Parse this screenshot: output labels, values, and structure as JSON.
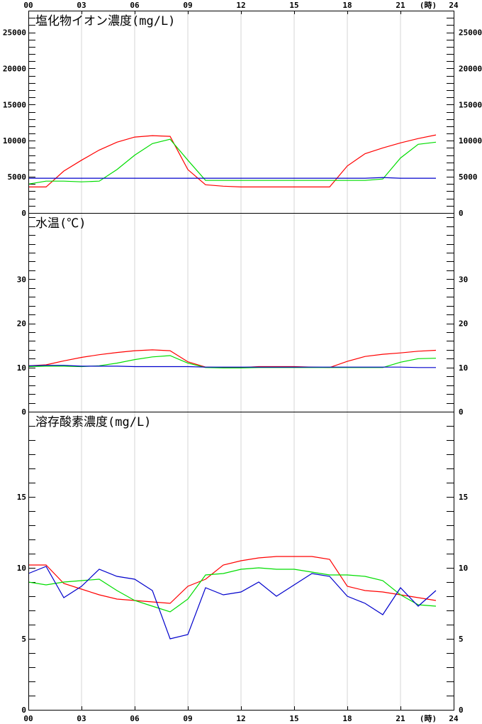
{
  "chart_data": [
    {
      "type": "line",
      "title": "塩化物イオン濃度(mg/L)",
      "x": [
        0,
        1,
        2,
        3,
        4,
        5,
        6,
        7,
        8,
        9,
        10,
        11,
        12,
        13,
        14,
        15,
        16,
        17,
        18,
        19,
        20,
        21,
        22,
        23
      ],
      "xlim": [
        0,
        24
      ],
      "ylim": [
        0,
        28000
      ],
      "yticks": [
        0,
        5000,
        10000,
        15000,
        20000,
        25000
      ],
      "grid": "vertical",
      "series": [
        {
          "color": "#ff0000",
          "values": [
            3600,
            3600,
            5800,
            7300,
            8700,
            9800,
            10500,
            10700,
            10600,
            6000,
            3900,
            3700,
            3600,
            3600,
            3600,
            3600,
            3600,
            3600,
            6500,
            8200,
            9000,
            9700,
            10300,
            10800
          ]
        },
        {
          "color": "#00dd00",
          "values": [
            4000,
            4400,
            4400,
            4300,
            4400,
            6000,
            8000,
            9600,
            10200,
            7300,
            4500,
            4500,
            4500,
            4500,
            4500,
            4500,
            4500,
            4500,
            4500,
            4500,
            4700,
            7600,
            9500,
            9800
          ]
        },
        {
          "color": "#0000cc",
          "values": [
            4800,
            4800,
            4800,
            4800,
            4800,
            4800,
            4800,
            4800,
            4800,
            4800,
            4800,
            4800,
            4800,
            4800,
            4800,
            4800,
            4800,
            4800,
            4800,
            4800,
            4900,
            4800,
            4800,
            4800
          ]
        }
      ]
    },
    {
      "type": "line",
      "title": "水温(℃)",
      "x": [
        0,
        1,
        2,
        3,
        4,
        5,
        6,
        7,
        8,
        9,
        10,
        11,
        12,
        13,
        14,
        15,
        16,
        17,
        18,
        19,
        20,
        21,
        22,
        23
      ],
      "xlim": [
        0,
        24
      ],
      "ylim": [
        0,
        45
      ],
      "yticks": [
        0,
        10,
        20,
        30
      ],
      "grid": "vertical",
      "series": [
        {
          "color": "#ff0000",
          "values": [
            10.4,
            10.6,
            11.5,
            12.3,
            12.9,
            13.4,
            13.8,
            14.0,
            13.8,
            11.3,
            10.1,
            10.0,
            10.0,
            10.2,
            10.2,
            10.2,
            10.1,
            10.0,
            11.4,
            12.5,
            13.0,
            13.3,
            13.7,
            13.9
          ]
        },
        {
          "color": "#00dd00",
          "values": [
            10.2,
            10.3,
            10.3,
            10.2,
            10.4,
            11.0,
            11.8,
            12.4,
            12.7,
            11.0,
            10.0,
            9.9,
            9.9,
            10.0,
            10.0,
            10.0,
            10.0,
            10.0,
            10.0,
            10.0,
            10.0,
            11.2,
            12.0,
            12.1
          ]
        },
        {
          "color": "#0000cc",
          "values": [
            10.4,
            10.5,
            10.5,
            10.3,
            10.3,
            10.3,
            10.2,
            10.2,
            10.2,
            10.2,
            10.1,
            10.1,
            10.1,
            10.1,
            10.1,
            10.1,
            10.1,
            10.1,
            10.1,
            10.1,
            10.1,
            10.1,
            10.0,
            10.0
          ]
        }
      ]
    },
    {
      "type": "line",
      "title": "溶存酸素濃度(mg/L)",
      "x": [
        0,
        1,
        2,
        3,
        4,
        5,
        6,
        7,
        8,
        9,
        10,
        11,
        12,
        13,
        14,
        15,
        16,
        17,
        18,
        19,
        20,
        21,
        22,
        23
      ],
      "xlim": [
        0,
        24
      ],
      "ylim": [
        0,
        21
      ],
      "yticks": [
        0,
        5,
        10,
        15
      ],
      "grid": "vertical",
      "series": [
        {
          "color": "#ff0000",
          "values": [
            10.2,
            10.2,
            8.9,
            8.5,
            8.1,
            7.8,
            7.7,
            7.6,
            7.5,
            8.7,
            9.2,
            10.2,
            10.5,
            10.7,
            10.8,
            10.8,
            10.8,
            10.6,
            8.7,
            8.4,
            8.3,
            8.1,
            7.9,
            7.7
          ]
        },
        {
          "color": "#00dd00",
          "values": [
            9.0,
            8.8,
            9.0,
            9.1,
            9.2,
            8.4,
            7.7,
            7.3,
            6.9,
            7.8,
            9.5,
            9.6,
            9.9,
            10.0,
            9.9,
            9.9,
            9.7,
            9.5,
            9.5,
            9.4,
            9.1,
            8.1,
            7.4,
            7.3
          ]
        },
        {
          "color": "#0000cc",
          "values": [
            9.6,
            10.1,
            7.9,
            8.7,
            9.9,
            9.4,
            9.2,
            8.4,
            5.0,
            5.3,
            8.6,
            8.1,
            8.3,
            9.0,
            8.0,
            8.8,
            9.6,
            9.4,
            8.0,
            7.5,
            6.7,
            8.6,
            7.3,
            8.4
          ]
        }
      ]
    }
  ],
  "axis": {
    "xticks": [
      0,
      3,
      6,
      9,
      12,
      15,
      18,
      21,
      24
    ],
    "xtick_labels": [
      "00",
      "03",
      "06",
      "09",
      "12",
      "15",
      "18",
      "21",
      "24"
    ],
    "xunit": "(時)"
  }
}
